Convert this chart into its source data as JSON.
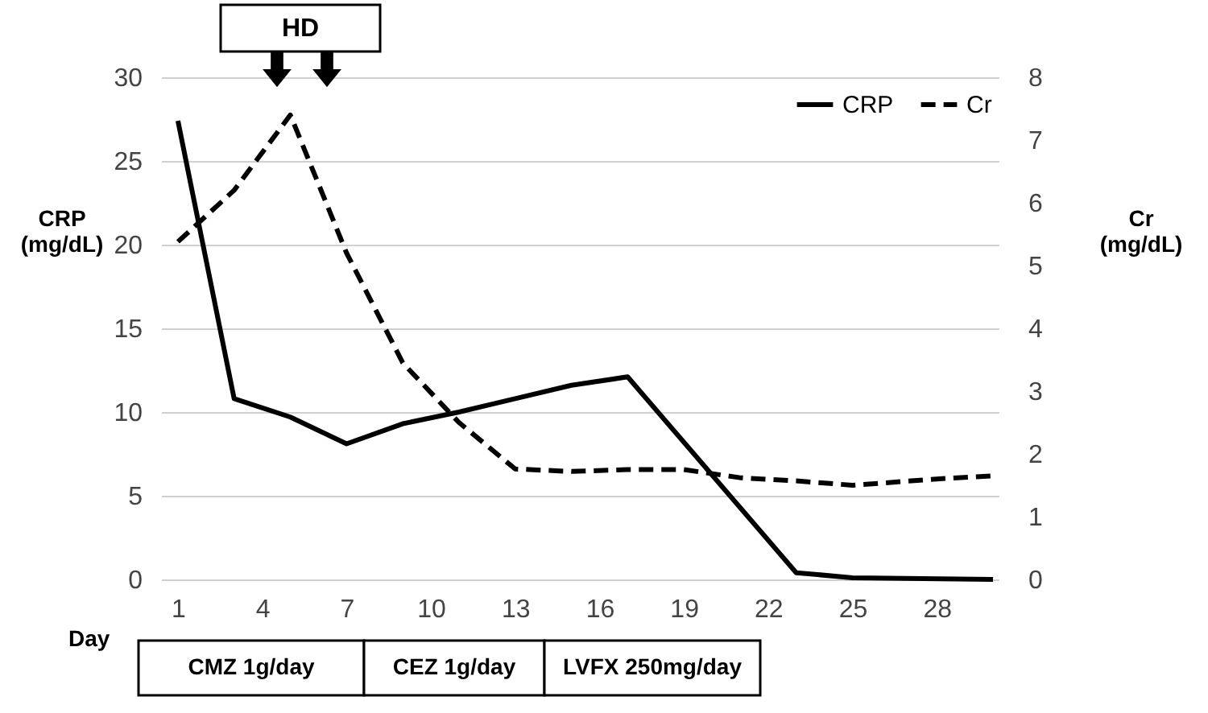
{
  "chart_data": {
    "type": "line",
    "xlabel": "Day",
    "ylabel": "CRP (mg/dL)",
    "y2label": "Cr (mg/dL)",
    "xlim": [
      0.4,
      30.2
    ],
    "xticks": [
      1,
      4,
      7,
      10,
      13,
      16,
      19,
      22,
      25,
      28
    ],
    "ylim": [
      0,
      30
    ],
    "yticks": [
      0,
      5,
      10,
      15,
      20,
      25,
      30
    ],
    "y2lim": [
      0,
      8
    ],
    "y2ticks": [
      0,
      1,
      2,
      3,
      4,
      5,
      6,
      7,
      8
    ],
    "grid": "y",
    "legend": "top right",
    "series": [
      {
        "name": "CRP",
        "color": "#000000",
        "line_style": "solid",
        "x": [
          1,
          3,
          5,
          7,
          9,
          11,
          13,
          15,
          17,
          23,
          25,
          30
        ],
        "values": [
          27.4,
          10.8,
          9.7,
          8.1,
          9.3,
          10.0,
          10.8,
          11.6,
          12.1,
          0.4,
          0.1,
          0
        ]
      },
      {
        "name": "Cr",
        "color": "#000000",
        "line_style": "dashed",
        "axis": "y2",
        "x": [
          1,
          3,
          5,
          7,
          9,
          11,
          13,
          15,
          17,
          19,
          21,
          23,
          25,
          28,
          30
        ],
        "values": [
          5.38,
          6.2,
          7.4,
          5.2,
          3.45,
          2.5,
          1.76,
          1.72,
          1.75,
          1.75,
          1.62,
          1.57,
          1.5,
          1.6,
          1.65
        ]
      }
    ],
    "annotations": [
      "HD",
      "CMZ 1g/day",
      "CEZ 1g/day",
      "LVFX 250mg/day"
    ]
  }
}
